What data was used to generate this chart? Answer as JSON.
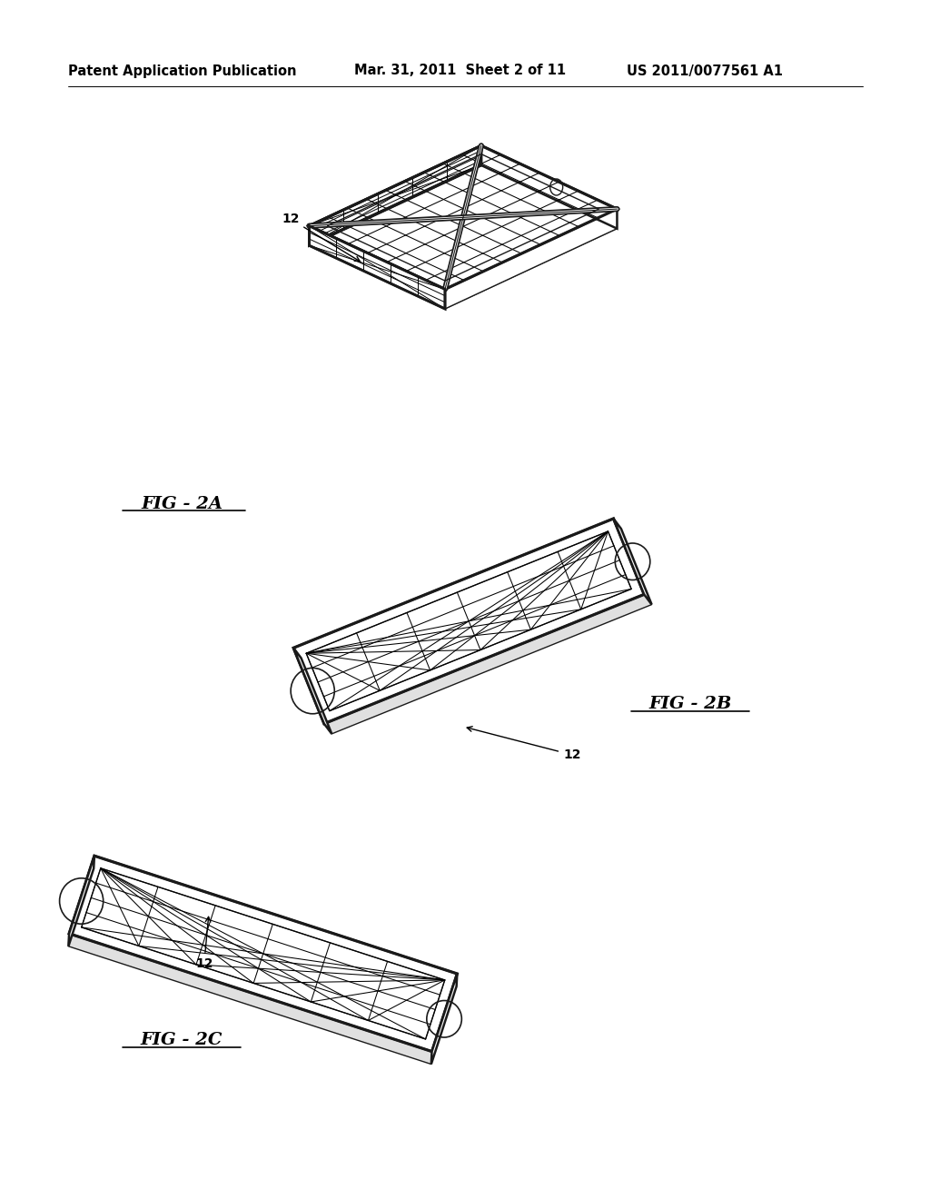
{
  "background_color": "#ffffff",
  "header_left": "Patent Application Publication",
  "header_center": "Mar. 31, 2011  Sheet 2 of 11",
  "header_right": "US 2011/0077561 A1",
  "header_fontsize": 10.5,
  "fig2a_label": "FIG - 2A",
  "fig2b_label": "FIG - 2B",
  "fig2c_label": "FIG - 2C",
  "ref_num": "12",
  "line_color": "#1a1a1a",
  "line_width": 1.8
}
